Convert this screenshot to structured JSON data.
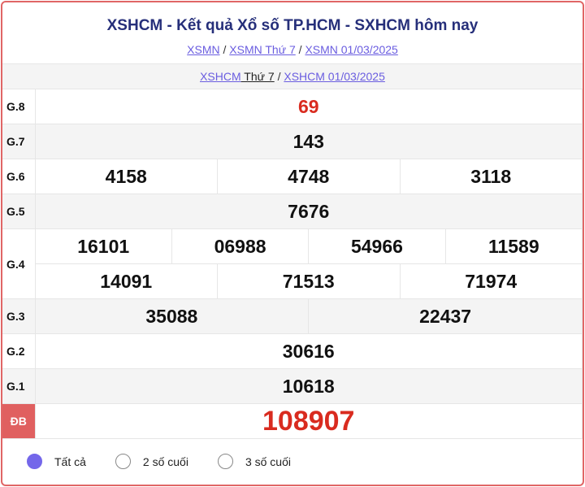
{
  "title": "XSHCM - Kết quả Xổ số TP.HCM - SXHCM hôm nay",
  "breadcrumb": [
    "XSMN",
    "XSMN Thứ 7",
    "XSMN 01/03/2025"
  ],
  "sub_breadcrumb": {
    "link1": "XSHCM",
    "link1_suffix": " Thứ 7",
    "link2": "XSHCM 01/03/2025"
  },
  "prizes": {
    "g8": {
      "label": "G.8",
      "values": [
        "69"
      ]
    },
    "g7": {
      "label": "G.7",
      "values": [
        "143"
      ]
    },
    "g6": {
      "label": "G.6",
      "values": [
        "4158",
        "4748",
        "3118"
      ]
    },
    "g5": {
      "label": "G.5",
      "values": [
        "7676"
      ]
    },
    "g4": {
      "label": "G.4",
      "values": [
        "16101",
        "06988",
        "54966",
        "11589",
        "14091",
        "71513",
        "71974"
      ]
    },
    "g3": {
      "label": "G.3",
      "values": [
        "35088",
        "22437"
      ]
    },
    "g2": {
      "label": "G.2",
      "values": [
        "30616"
      ]
    },
    "g1": {
      "label": "G.1",
      "values": [
        "10618"
      ]
    },
    "db": {
      "label": "ĐB",
      "values": [
        "108907"
      ]
    }
  },
  "filters": [
    {
      "label": "Tất cả",
      "selected": true
    },
    {
      "label": "2 số cuối",
      "selected": false
    },
    {
      "label": "3 số cuối",
      "selected": false
    }
  ],
  "colors": {
    "accent": "#e06666",
    "link": "#6a5de0",
    "title": "#262f7a",
    "highlight": "#d92b1f"
  }
}
